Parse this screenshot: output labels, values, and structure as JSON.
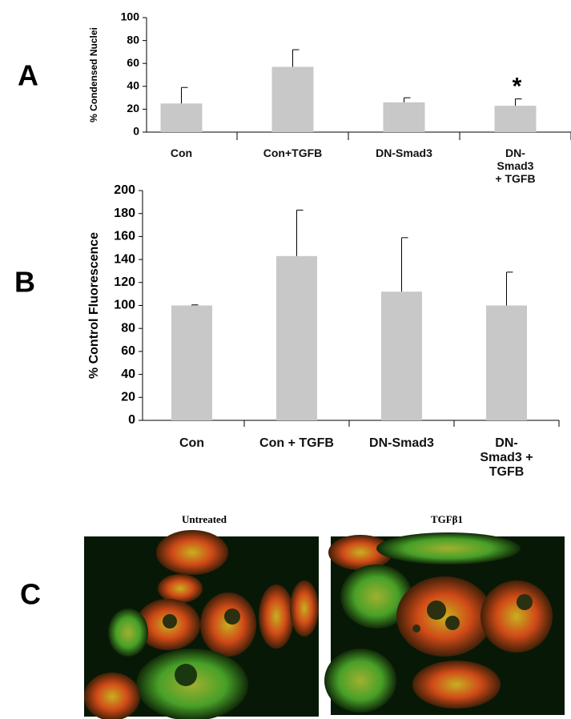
{
  "panels": {
    "a": "A",
    "b": "B",
    "c": "C"
  },
  "images": {
    "left_caption": "Untreated",
    "right_caption": "TGFβ1"
  },
  "chart_data": [
    {
      "type": "bar",
      "y_label": "% Condensed Nuclei",
      "categories": [
        "Con",
        "Con+TGFB",
        "DN-Smad3",
        "DN-Smad3\n+ TGFB"
      ],
      "values": [
        25,
        57,
        26,
        23
      ],
      "errors": [
        14,
        15,
        4,
        6
      ],
      "color": "#c8c8c8",
      "ylim": [
        0,
        100
      ],
      "yticks": [
        0,
        20,
        40,
        60,
        80,
        100
      ],
      "annotation": "*"
    },
    {
      "type": "bar",
      "y_label": "% Control Fluorescence",
      "categories": [
        "Con",
        "Con + TGFB",
        "DN-Smad3",
        "DN-Smad3 +\nTGFB"
      ],
      "values": [
        100,
        143,
        112,
        100
      ],
      "errors": [
        0.5,
        40,
        47,
        29
      ],
      "color": "#c8c8c8",
      "ylim": [
        0,
        200
      ],
      "yticks": [
        0,
        20,
        40,
        60,
        80,
        100,
        120,
        140,
        160,
        180,
        200
      ]
    }
  ]
}
